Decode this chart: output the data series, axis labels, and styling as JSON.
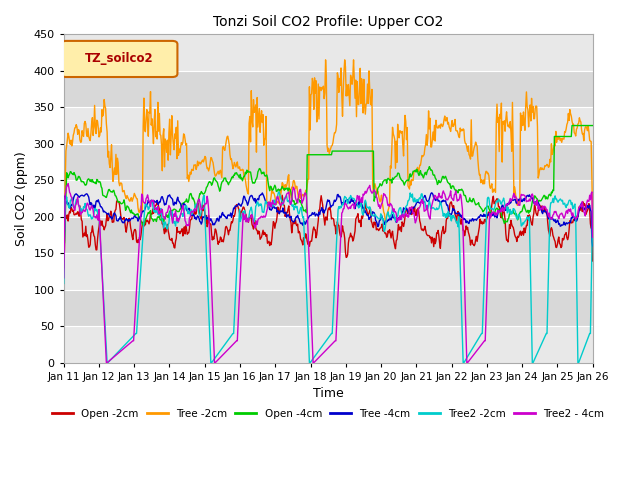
{
  "title": "Tonzi Soil CO2 Profile: Upper CO2",
  "xlabel": "Time",
  "ylabel": "Soil CO2 (ppm)",
  "ylim": [
    0,
    450
  ],
  "xlim": [
    0,
    15
  ],
  "x_tick_labels": [
    "Jan 11",
    "Jan 12",
    "Jan 13",
    "Jan 14",
    "Jan 15",
    "Jan 16",
    "Jan 17",
    "Jan 18",
    "Jan 19",
    "Jan 20",
    "Jan 21",
    "Jan 22",
    "Jan 23",
    "Jan 24",
    "Jan 25",
    "Jan 26"
  ],
  "yticks": [
    0,
    50,
    100,
    150,
    200,
    250,
    300,
    350,
    400,
    450
  ],
  "series_colors": {
    "open_2cm": "#cc0000",
    "tree_2cm": "#ff9900",
    "open_4cm": "#00cc00",
    "tree_4cm": "#0000cc",
    "tree2_2cm": "#00cccc",
    "tree2_4cm": "#cc00cc"
  },
  "legend_labels": [
    "Open -2cm",
    "Tree -2cm",
    "Open -4cm",
    "Tree -4cm",
    "Tree2 -2cm",
    "Tree2 - 4cm"
  ],
  "band_colors": [
    "#e8e8e8",
    "#d8d8d8"
  ],
  "legend_box_text": "TZ_soilco2",
  "legend_box_edge": "#cc6600",
  "legend_box_face": "#ffeeaa",
  "legend_text_color": "#aa0000"
}
